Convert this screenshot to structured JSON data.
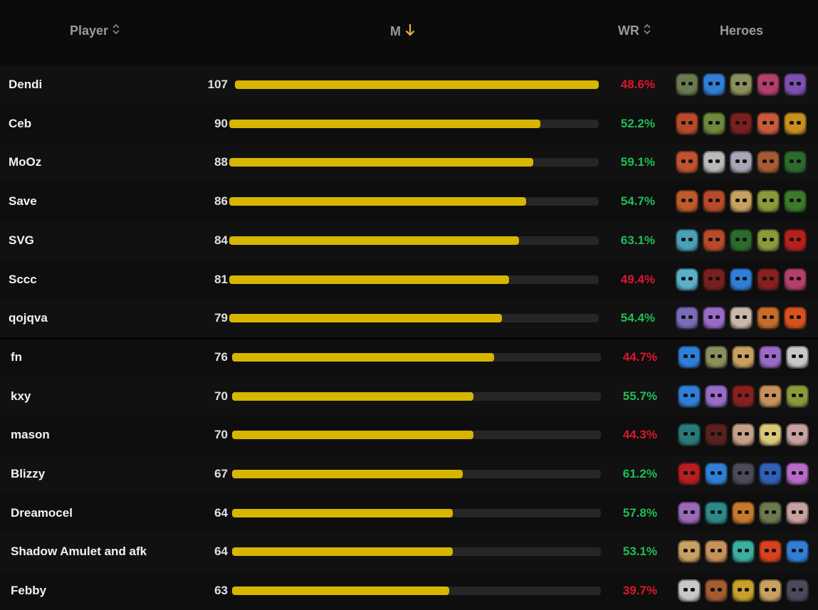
{
  "header": {
    "player_label": "Player",
    "matches_label": "M",
    "wr_label": "WR",
    "heroes_label": "Heroes",
    "colors": {
      "header_text": "#9a9a9a",
      "active_sort": "#e8b341"
    }
  },
  "colors": {
    "bar": "#d7b600",
    "track": "#262626",
    "win": "#1fbf55",
    "loss": "#e0162b"
  },
  "max_matches": 107,
  "rows": [
    {
      "player": "Dendi",
      "matches": "107",
      "m": 107,
      "wr": "48.6%",
      "good": false,
      "heroes": [
        "#6a7a4e",
        "#2f7fd8",
        "#8a8f5c",
        "#b43e6c",
        "#7c4fb0"
      ]
    },
    {
      "player": "Ceb",
      "matches": "90",
      "m": 90,
      "wr": "52.2%",
      "good": true,
      "heroes": [
        "#b84a2a",
        "#6b8a3a",
        "#7a1f1f",
        "#c85a3a",
        "#c8901e"
      ]
    },
    {
      "player": "MoOz",
      "matches": "88",
      "m": 88,
      "wr": "59.1%",
      "good": true,
      "heroes": [
        "#c0522e",
        "#b9b9b9",
        "#a7a7b8",
        "#a65b33",
        "#2c6b2c"
      ]
    },
    {
      "player": "Save",
      "matches": "86",
      "m": 86,
      "wr": "54.7%",
      "good": true,
      "heroes": [
        "#c05a2a",
        "#b84a2a",
        "#c8a060",
        "#8a9a3a",
        "#3a7a2a"
      ]
    },
    {
      "player": "SVG",
      "matches": "84",
      "m": 84,
      "wr": "63.1%",
      "good": true,
      "heroes": [
        "#4aa0b8",
        "#b84a2a",
        "#2c6b2c",
        "#8a9a3a",
        "#b81e1e"
      ]
    },
    {
      "player": "Sccc",
      "matches": "81",
      "m": 81,
      "wr": "49.4%",
      "good": false,
      "heroes": [
        "#5ab0c8",
        "#7a1f1f",
        "#2f7fd8",
        "#8a1f1f",
        "#b43e6c"
      ]
    },
    {
      "player": "qojqva",
      "matches": "79",
      "m": 79,
      "wr": "54.4%",
      "good": true,
      "heroes": [
        "#7a6ab8",
        "#9a6ac8",
        "#c8b8a8",
        "#c86a2a",
        "#d8501e"
      ]
    },
    {
      "player": "fn",
      "matches": "76",
      "m": 76,
      "wr": "44.7%",
      "good": false,
      "heroes": [
        "#2f7fd8",
        "#8a8f5c",
        "#c8a060",
        "#9a6ac8",
        "#c8c8c8"
      ]
    },
    {
      "player": "kxy",
      "matches": "70",
      "m": 70,
      "wr": "55.7%",
      "good": true,
      "heroes": [
        "#2f7fd8",
        "#9a6ac8",
        "#8a1f1f",
        "#c8905a",
        "#8a9a3a"
      ]
    },
    {
      "player": "mason",
      "matches": "70",
      "m": 70,
      "wr": "44.3%",
      "good": false,
      "heroes": [
        "#2a7a7a",
        "#5a1f1f",
        "#c8a08a",
        "#d8c87a",
        "#c8a0a0"
      ]
    },
    {
      "player": "Blizzy",
      "matches": "67",
      "m": 67,
      "wr": "61.2%",
      "good": true,
      "heroes": [
        "#b81e1e",
        "#2f7fd8",
        "#4a4a5a",
        "#2f5fb8",
        "#b86ac8"
      ]
    },
    {
      "player": "Dreamocel",
      "matches": "64",
      "m": 64,
      "wr": "57.8%",
      "good": true,
      "heroes": [
        "#9a6ab8",
        "#2a8a8a",
        "#c87a2a",
        "#6a7a4e",
        "#c8a0a0"
      ]
    },
    {
      "player": "Shadow Amulet and afk",
      "matches": "64",
      "m": 64,
      "wr": "53.1%",
      "good": true,
      "heroes": [
        "#c8a060",
        "#c8905a",
        "#3ab0a0",
        "#d8401e",
        "#2f7fd8"
      ]
    },
    {
      "player": "Febby",
      "matches": "63",
      "m": 63,
      "wr": "39.7%",
      "good": false,
      "heroes": [
        "#c8c8c8",
        "#a65b33",
        "#c8a02a",
        "#c8a060",
        "#4a4a5a"
      ]
    }
  ]
}
